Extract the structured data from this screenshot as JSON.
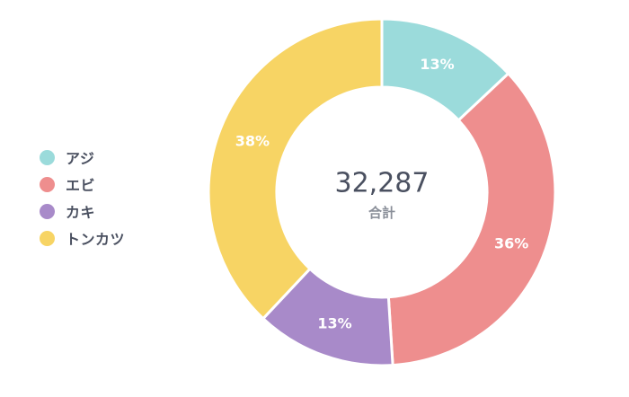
{
  "chart_data": {
    "type": "pie",
    "categories": [
      "アジ",
      "エビ",
      "カキ",
      "トンカツ"
    ],
    "values": [
      13,
      36,
      13,
      38
    ],
    "value_labels": [
      "13%",
      "36%",
      "13%",
      "38%"
    ],
    "colors": [
      "#9bdbdb",
      "#ee8e8e",
      "#a88ac9",
      "#f7d464"
    ],
    "total": "32,287",
    "total_label": "合計",
    "legend_position": "left"
  }
}
